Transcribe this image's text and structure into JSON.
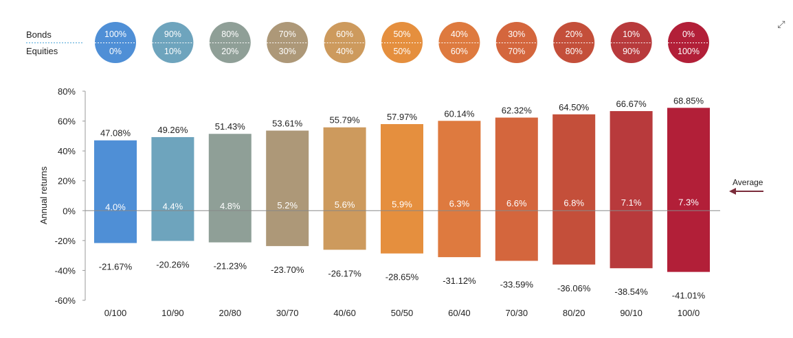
{
  "header": {
    "bonds_label": "Bonds",
    "equities_label": "Equities"
  },
  "expand_icon": "expand-icon",
  "chart_data": {
    "type": "bar",
    "ylabel": "Annual returns",
    "ylim": [
      -60,
      80
    ],
    "yticks": [
      "80%",
      "60%",
      "40%",
      "20%",
      "0%",
      "-20%",
      "-40%",
      "-60%"
    ],
    "yticks_values": [
      80,
      60,
      40,
      20,
      0,
      -20,
      -40,
      -60
    ],
    "grid": false,
    "categories": [
      "0/100",
      "10/90",
      "20/80",
      "30/70",
      "40/60",
      "50/50",
      "60/40",
      "70/30",
      "80/20",
      "90/10",
      "100/0"
    ],
    "bonds_pct": [
      "100%",
      "90%",
      "80%",
      "70%",
      "60%",
      "50%",
      "40%",
      "30%",
      "20%",
      "10%",
      "0%"
    ],
    "equities_pct": [
      "0%",
      "10%",
      "20%",
      "30%",
      "40%",
      "50%",
      "60%",
      "70%",
      "80%",
      "90%",
      "100%"
    ],
    "max_values": [
      47.08,
      49.26,
      51.43,
      53.61,
      55.79,
      57.97,
      60.14,
      62.32,
      64.5,
      66.67,
      68.85
    ],
    "max_labels": [
      "47.08%",
      "49.26%",
      "51.43%",
      "53.61%",
      "55.79%",
      "57.97%",
      "60.14%",
      "62.32%",
      "64.50%",
      "66.67%",
      "68.85%"
    ],
    "min_values": [
      -21.67,
      -20.26,
      -21.23,
      -23.7,
      -26.17,
      -28.65,
      -31.12,
      -33.59,
      -36.06,
      -38.54,
      -41.01
    ],
    "min_labels": [
      "-21.67%",
      "-20.26%",
      "-21.23%",
      "-23.70%",
      "-26.17%",
      "-28.65%",
      "-31.12%",
      "-33.59%",
      "-36.06%",
      "-38.54%",
      "-41.01%"
    ],
    "average_values": [
      4.0,
      4.4,
      4.8,
      5.2,
      5.6,
      5.9,
      6.3,
      6.6,
      6.8,
      7.1,
      7.3
    ],
    "average_labels": [
      "4.0%",
      "4.4%",
      "4.8%",
      "5.2%",
      "5.6%",
      "5.9%",
      "6.3%",
      "6.6%",
      "6.8%",
      "7.1%",
      "7.3%"
    ],
    "colors": [
      "#4f8fd6",
      "#6ea4bd",
      "#8f9f97",
      "#ad9878",
      "#cd9a5d",
      "#e58f3e",
      "#de7a3f",
      "#d4663d",
      "#c44f3a",
      "#b83a3c",
      "#b21f38"
    ],
    "legend": {
      "text": "Average",
      "placement": "right"
    },
    "arrow_color": "#7a2b3a",
    "zero_line_color": "#888888"
  }
}
